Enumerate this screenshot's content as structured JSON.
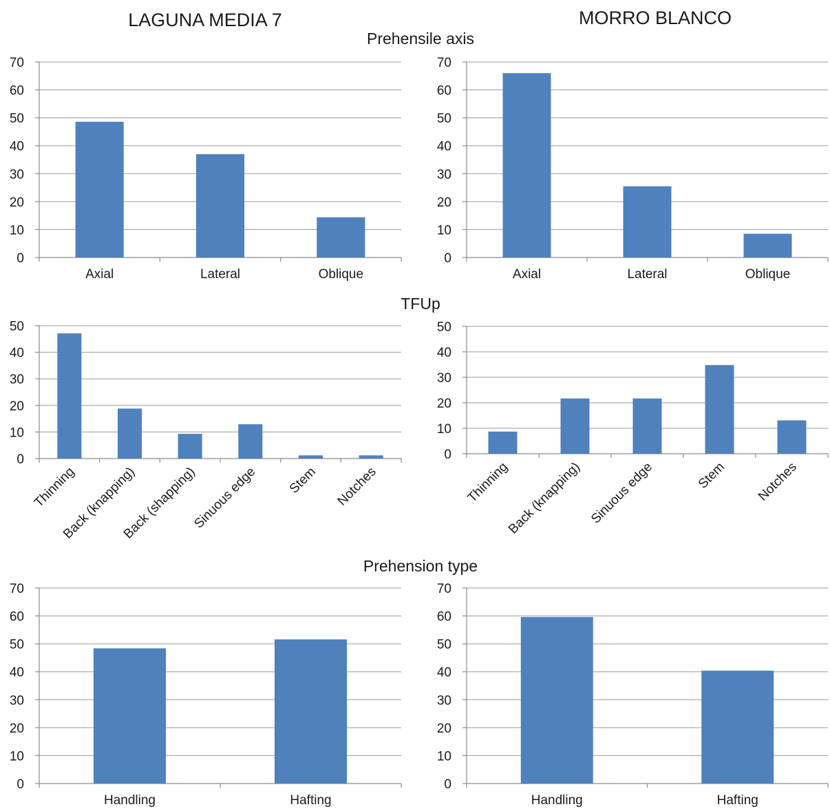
{
  "page": {
    "site_titles": [
      "LAGUNA MEDIA 7",
      "MORRO BLANCO"
    ],
    "section_titles": [
      "Prehensile axis",
      "TFUp",
      "Prehension type"
    ]
  },
  "colors": {
    "bar": "#4f81bd",
    "grid": "#9a9a9a",
    "text": "#1a1a1a"
  },
  "chart_data": [
    {
      "type": "bar",
      "id": "lm7-axis",
      "categories": [
        "Axial",
        "Lateral",
        "Oblique"
      ],
      "values": [
        48.6,
        37,
        14.4
      ],
      "ylim": [
        0,
        70
      ],
      "ytick_step": 10,
      "grid": true,
      "xlabel": "",
      "ylabel": ""
    },
    {
      "type": "bar",
      "id": "mb-axis",
      "categories": [
        "Axial",
        "Lateral",
        "Oblique"
      ],
      "values": [
        66,
        25.5,
        8.5
      ],
      "ylim": [
        0,
        70
      ],
      "ytick_step": 10,
      "grid": true,
      "xlabel": "",
      "ylabel": ""
    },
    {
      "type": "bar",
      "id": "lm7-tfup",
      "categories": [
        "Thinning",
        "Back (knapping)",
        "Back (shapping)",
        "Sinuous edge",
        "Stem",
        "Notches"
      ],
      "values": [
        47.1,
        18.8,
        9.3,
        12.9,
        1.2,
        1.2
      ],
      "ylim": [
        0,
        50
      ],
      "ytick_step": 10,
      "grid": true,
      "rotated_labels": true,
      "xlabel": "",
      "ylabel": ""
    },
    {
      "type": "bar",
      "id": "mb-tfup",
      "categories": [
        "Thinning",
        "Back (knapping)",
        "Sinuous edge",
        "Stem",
        "Notches"
      ],
      "values": [
        8.7,
        21.7,
        21.7,
        34.8,
        13.1
      ],
      "ylim": [
        0,
        50
      ],
      "ytick_step": 10,
      "grid": true,
      "rotated_labels": true,
      "xlabel": "",
      "ylabel": ""
    },
    {
      "type": "bar",
      "id": "lm7-type",
      "categories": [
        "Handling",
        "Hafting"
      ],
      "values": [
        48.4,
        51.6
      ],
      "ylim": [
        0,
        70
      ],
      "ytick_step": 10,
      "grid": true,
      "xlabel": "",
      "ylabel": ""
    },
    {
      "type": "bar",
      "id": "mb-type",
      "categories": [
        "Handling",
        "Hafting"
      ],
      "values": [
        59.6,
        40.4
      ],
      "ylim": [
        0,
        70
      ],
      "ytick_step": 10,
      "grid": true,
      "xlabel": "",
      "ylabel": ""
    }
  ]
}
